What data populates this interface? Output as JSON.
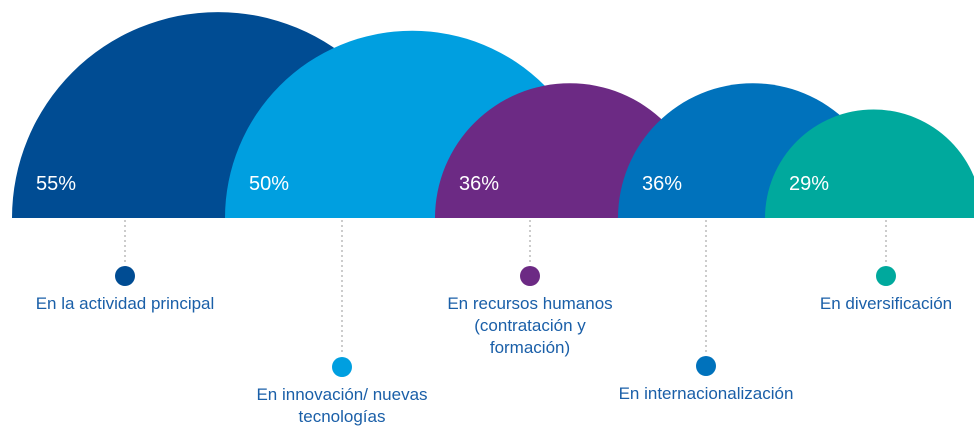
{
  "chart_data": {
    "type": "semicircle",
    "categories": [
      "En la actividad principal",
      "En innovación/ nuevas tecnologías",
      "En recursos humanos (contratación y formación)",
      "En internacionalización",
      "En diversificación"
    ],
    "values": [
      55,
      50,
      36,
      36,
      29
    ],
    "value_labels": [
      "55%",
      "50%",
      "36%",
      "36%",
      "29%"
    ],
    "colors": [
      "#004c93",
      "#009fe0",
      "#6c2a84",
      "#0072bc",
      "#00a99d"
    ]
  }
}
